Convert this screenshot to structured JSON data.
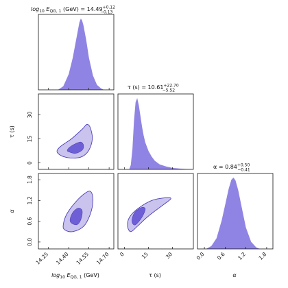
{
  "chart_data": {
    "type": "corner",
    "colors": {
      "fill_light": "#c9c3ee",
      "fill_dark": "#6f5fd6",
      "outline": "#4b3fb8",
      "hist": "#8f84e3"
    },
    "parameters": [
      {
        "key": "logE",
        "label": "log10 E_QG,1 (GeV)",
        "title": "log10 E_QG,1 (GeV) = 14.49 +0.12 −0.13",
        "range": [
          14.175,
          14.735
        ],
        "ticks": [
          14.25,
          14.4,
          14.55,
          14.7
        ],
        "tick_labels": [
          "14.25",
          "14.40",
          "14.55",
          "14.70"
        ]
      },
      {
        "key": "tau",
        "label": "τ (s)",
        "title": "τ (s) = 10.61 +22.70 −5.52",
        "range": [
          -4,
          43
        ],
        "ticks": [
          0,
          15,
          30
        ],
        "tick_labels": [
          "0",
          "15",
          "30"
        ]
      },
      {
        "key": "alpha",
        "label": "α",
        "title": "α = 0.84 +0.50 −0.41",
        "range": [
          -0.2,
          1.98
        ],
        "ticks": [
          0.0,
          0.6,
          1.2,
          1.8
        ],
        "tick_labels": [
          "0.0",
          "0.6",
          "1.2",
          "1.8"
        ]
      }
    ],
    "titles": {
      "logE": {
        "pre": "log",
        "sub1": "10",
        "mid": " E",
        "sub2": "QG, 1",
        "post": " (GeV) = 14.49",
        "plus": "+0.12",
        "minus": "−0.13"
      },
      "tau": {
        "pre": "τ (s) = 10.61",
        "plus": "+22.70",
        "minus": "−5.52"
      },
      "alpha": {
        "pre": "α = 0.84",
        "plus": "+0.50",
        "minus": "−0.41"
      }
    },
    "axis_labels": {
      "x_logE": {
        "pre": "log",
        "sub1": "10",
        "mid": " E",
        "sub2": "QG, 1",
        "post": " (GeV)"
      },
      "y_tau": "τ (s)",
      "x_tau": "τ (s)",
      "y_alpha": "α",
      "x_alpha": "α"
    },
    "marginals": {
      "logE": {
        "x": [
          14.32,
          14.36,
          14.4,
          14.43,
          14.45,
          14.47,
          14.48,
          14.49,
          14.5,
          14.51,
          14.53,
          14.55,
          14.58,
          14.61,
          14.64,
          14.66
        ],
        "density": [
          0.0,
          0.05,
          0.22,
          0.45,
          0.65,
          0.85,
          0.95,
          1.0,
          0.97,
          0.9,
          0.7,
          0.45,
          0.2,
          0.07,
          0.02,
          0.0
        ]
      },
      "tau": {
        "x": [
          3,
          4,
          5,
          6,
          7,
          8,
          9,
          10,
          11,
          12,
          13,
          15,
          17,
          19,
          22,
          26,
          30,
          34,
          38,
          42
        ],
        "density": [
          0.0,
          0.06,
          0.28,
          0.68,
          0.94,
          1.0,
          0.9,
          0.75,
          0.6,
          0.48,
          0.38,
          0.26,
          0.18,
          0.12,
          0.07,
          0.04,
          0.02,
          0.012,
          0.006,
          0.003
        ]
      },
      "alpha": {
        "x": [
          0.05,
          0.2,
          0.35,
          0.5,
          0.6,
          0.7,
          0.78,
          0.84,
          0.9,
          0.98,
          1.08,
          1.2,
          1.35,
          1.5,
          1.6
        ],
        "density": [
          0.0,
          0.04,
          0.15,
          0.4,
          0.62,
          0.84,
          0.97,
          1.0,
          0.96,
          0.82,
          0.58,
          0.3,
          0.1,
          0.02,
          0.0
        ]
      }
    },
    "contours": [
      {
        "x": "logE",
        "y": "tau",
        "outer": [
          [
            14.32,
            6
          ],
          [
            14.36,
            4
          ],
          [
            14.43,
            3
          ],
          [
            14.5,
            4
          ],
          [
            14.55,
            8
          ],
          [
            14.575,
            15
          ],
          [
            14.56,
            22
          ],
          [
            14.535,
            24
          ],
          [
            14.5,
            21
          ],
          [
            14.42,
            15
          ],
          [
            14.35,
            11
          ],
          [
            14.315,
            8
          ]
        ],
        "inner": [
          [
            14.4,
            7
          ],
          [
            14.45,
            6
          ],
          [
            14.5,
            8
          ],
          [
            14.51,
            11
          ],
          [
            14.49,
            13
          ],
          [
            14.45,
            12
          ],
          [
            14.41,
            10
          ],
          [
            14.39,
            8
          ]
        ]
      },
      {
        "x": "logE",
        "y": "alpha",
        "outer": [
          [
            14.37,
            0.35
          ],
          [
            14.43,
            0.3
          ],
          [
            14.51,
            0.45
          ],
          [
            14.56,
            0.8
          ],
          [
            14.58,
            1.2
          ],
          [
            14.565,
            1.45
          ],
          [
            14.525,
            1.42
          ],
          [
            14.45,
            1.15
          ],
          [
            14.385,
            0.8
          ],
          [
            14.36,
            0.5
          ]
        ],
        "inner": [
          [
            14.42,
            0.55
          ],
          [
            14.46,
            0.5
          ],
          [
            14.49,
            0.65
          ],
          [
            14.5,
            0.9
          ],
          [
            14.47,
            0.98
          ],
          [
            14.43,
            0.85
          ],
          [
            14.41,
            0.65
          ]
        ]
      },
      {
        "x": "tau",
        "y": "alpha",
        "outer": [
          [
            2,
            0.45
          ],
          [
            4,
            0.3
          ],
          [
            8,
            0.45
          ],
          [
            15,
            0.75
          ],
          [
            25,
            1.1
          ],
          [
            29,
            1.25
          ],
          [
            26,
            1.28
          ],
          [
            17,
            1.2
          ],
          [
            8,
            0.95
          ],
          [
            3,
            0.7
          ]
        ],
        "inner": [
          [
            5,
            0.55
          ],
          [
            7,
            0.5
          ],
          [
            11,
            0.72
          ],
          [
            13,
            0.95
          ],
          [
            11,
            1.0
          ],
          [
            7,
            0.88
          ],
          [
            5,
            0.7
          ]
        ]
      }
    ]
  }
}
